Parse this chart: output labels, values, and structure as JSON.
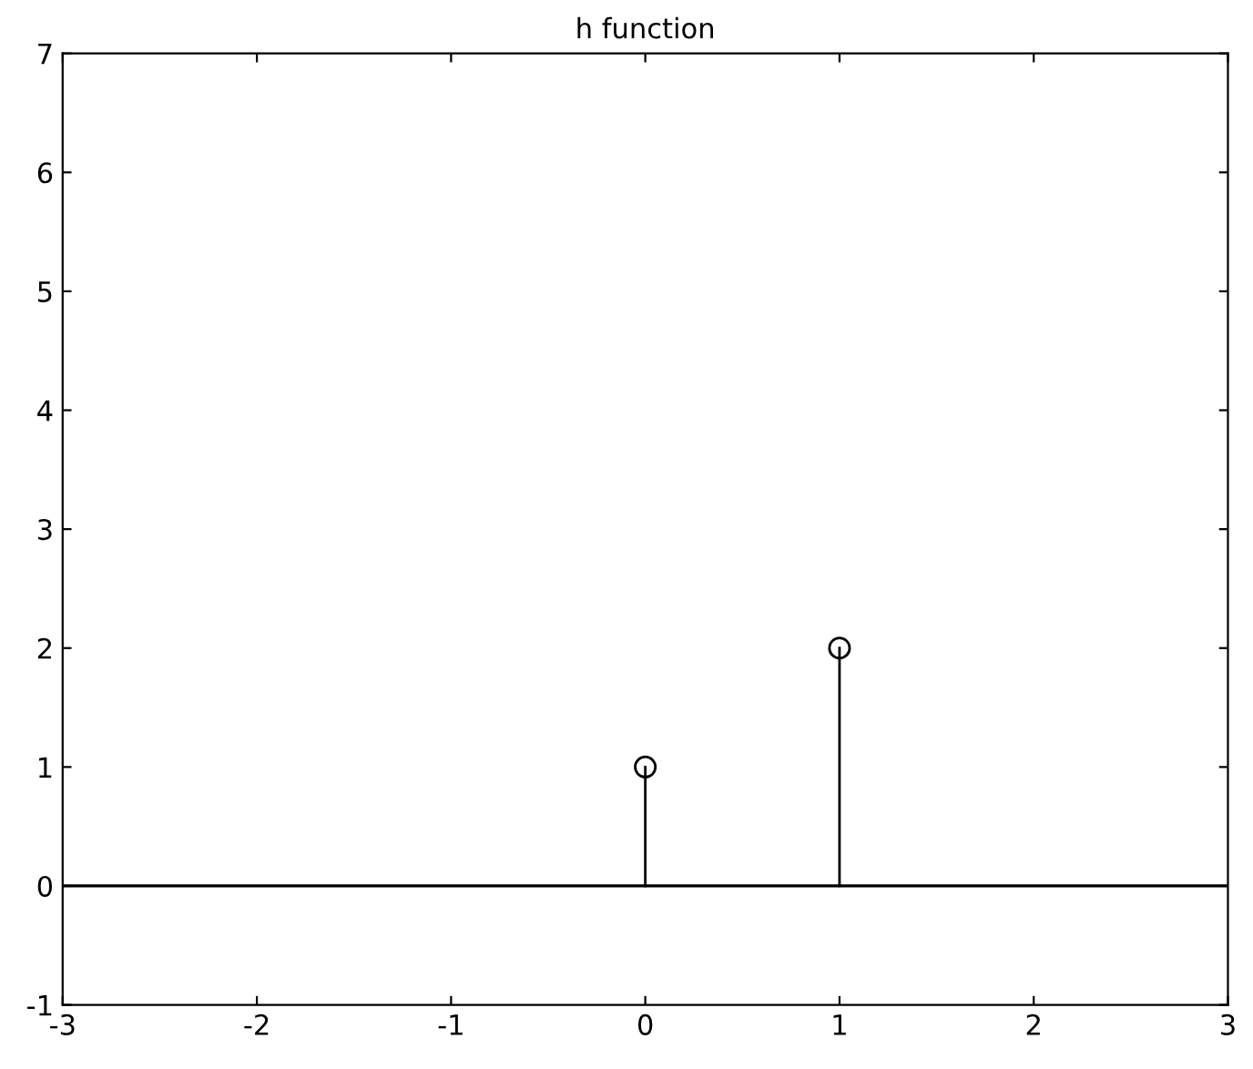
{
  "chart_data": {
    "type": "lollipop",
    "title": "h function",
    "x": [
      0,
      1
    ],
    "series": [
      {
        "color": "#000000",
        "values": [
          1,
          2
        ]
      }
    ],
    "marker": "circle",
    "xlim": [
      -3,
      3
    ],
    "ylim": [
      -1,
      7
    ],
    "xticks": [
      -3,
      -2,
      -1,
      0,
      1,
      2,
      3
    ],
    "yticks": [
      -1,
      0,
      1,
      2,
      3,
      4,
      5,
      6,
      7
    ],
    "ref_lines": [
      {
        "axis": "y",
        "value": 0,
        "color": "#000000"
      }
    ]
  }
}
